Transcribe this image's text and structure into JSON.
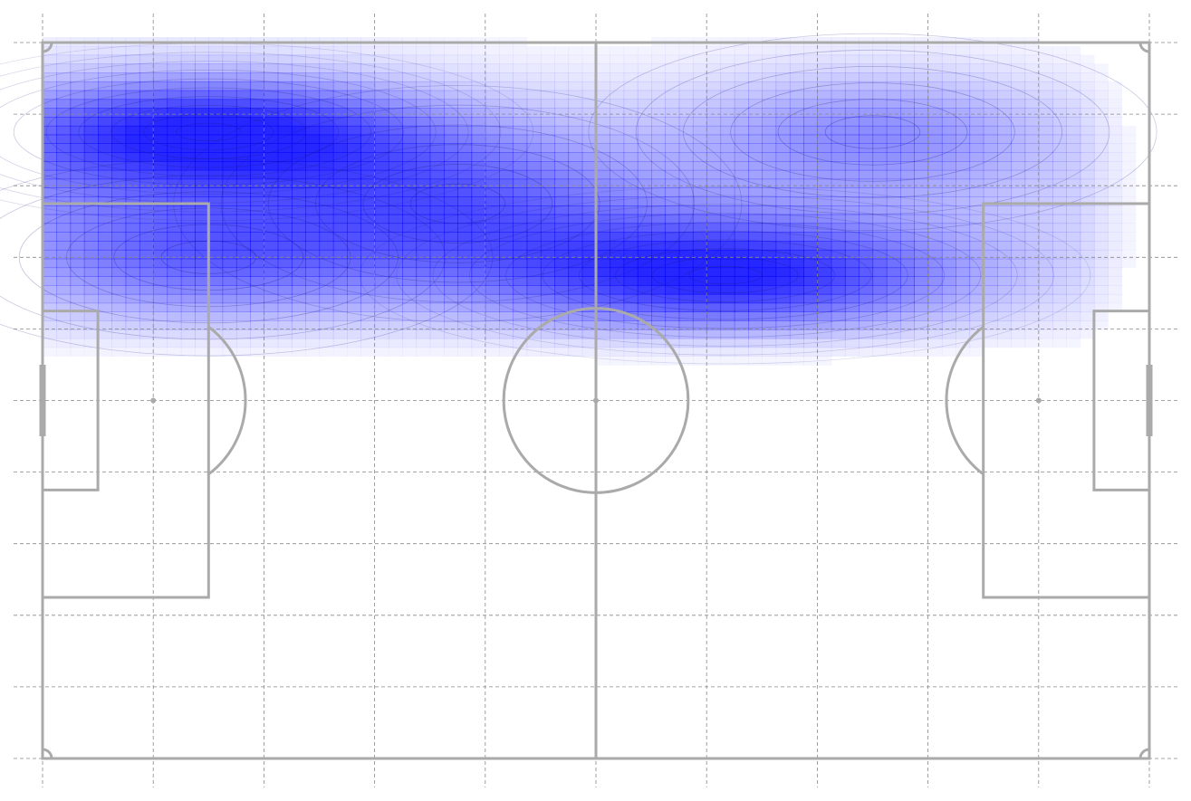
{
  "chart_data": {
    "type": "heatmap",
    "subtype": "kde-density-on-football-pitch",
    "title": "",
    "xlabel": "",
    "ylabel": "",
    "xlim": [
      0,
      120
    ],
    "ylim": [
      0,
      80
    ],
    "grid": true,
    "grid_style": "dashed",
    "grid_x": [
      0,
      12,
      24,
      36,
      48,
      60,
      72,
      84,
      96,
      108,
      120
    ],
    "grid_y": [
      0,
      8,
      16,
      24,
      32,
      40,
      48,
      56,
      64,
      72,
      80
    ],
    "legend": "none",
    "colors": {
      "density": "#0000ff",
      "pitch_lines": "#aaaaaa",
      "grid": "#888888",
      "background": "#ffffff"
    },
    "density_hotspots": [
      {
        "x": 18,
        "y": 70,
        "sx": 16,
        "sy": 4.5,
        "weight": 1.0
      },
      {
        "x": 74,
        "y": 54,
        "sx": 18,
        "sy": 4.5,
        "weight": 1.0
      },
      {
        "x": 90,
        "y": 70,
        "sx": 14,
        "sy": 5,
        "weight": 0.45
      },
      {
        "x": 18,
        "y": 56,
        "sx": 14,
        "sy": 5,
        "weight": 0.55
      },
      {
        "x": 45,
        "y": 62,
        "sx": 14,
        "sy": 6,
        "weight": 0.5
      }
    ],
    "density_region": {
      "y_min": 42,
      "y_max": 80,
      "x_min": 0,
      "x_max": 120
    }
  }
}
